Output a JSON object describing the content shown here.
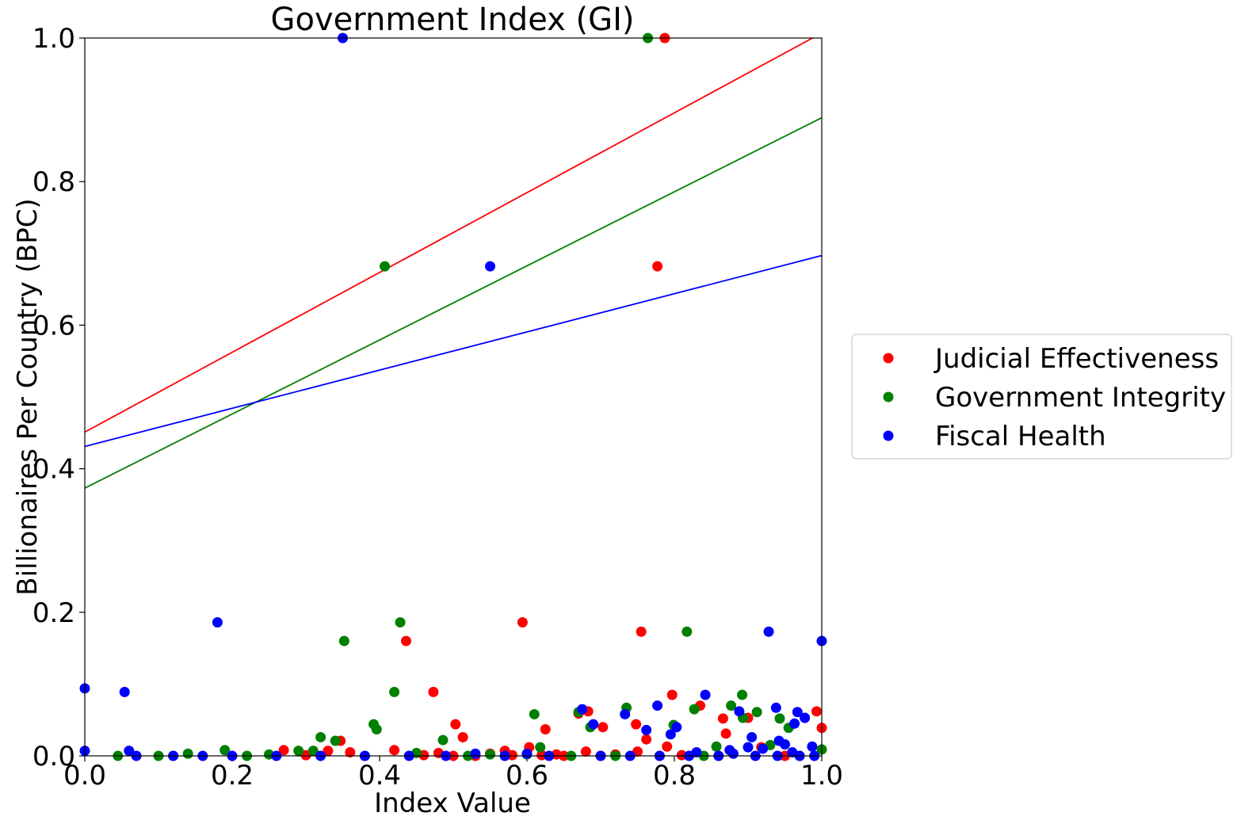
{
  "chart_data": {
    "type": "scatter",
    "title": "Government Index (GI)",
    "xlabel": "Index Value",
    "ylabel": "Billionaires Per Country (BPC)",
    "xlim": [
      0.0,
      1.0
    ],
    "ylim": [
      0.0,
      1.0
    ],
    "x_ticks": [
      "0.0",
      "0.2",
      "0.4",
      "0.6",
      "0.8",
      "1.0"
    ],
    "y_ticks": [
      "0.0",
      "0.2",
      "0.4",
      "0.6",
      "0.8",
      "1.0"
    ],
    "grid": false,
    "legend_placement": "outside-right",
    "series": [
      {
        "name": "Judicial Effectiveness",
        "color": "#ff0000",
        "points": [
          [
            0.787,
            1.0
          ],
          [
            0.777,
            0.682
          ],
          [
            0.594,
            0.186
          ],
          [
            0.755,
            0.173
          ],
          [
            0.436,
            0.16
          ],
          [
            0.473,
            0.089
          ],
          [
            0.797,
            0.085
          ],
          [
            0.835,
            0.07
          ],
          [
            0.683,
            0.062
          ],
          [
            0.67,
            0.059
          ],
          [
            0.993,
            0.062
          ],
          [
            0.866,
            0.052
          ],
          [
            0.9,
            0.053
          ],
          [
            0.503,
            0.044
          ],
          [
            0.748,
            0.044
          ],
          [
            0.703,
            0.04
          ],
          [
            1.0,
            0.039
          ],
          [
            0.625,
            0.037
          ],
          [
            0.513,
            0.026
          ],
          [
            0.762,
            0.023
          ],
          [
            0.87,
            0.031
          ],
          [
            0.347,
            0.021
          ],
          [
            0.79,
            0.013
          ],
          [
            0.603,
            0.012
          ],
          [
            0.918,
            0.012
          ],
          [
            0.27,
            0.008
          ],
          [
            0.42,
            0.008
          ],
          [
            0.33,
            0.007
          ],
          [
            0.57,
            0.007
          ],
          [
            0.68,
            0.006
          ],
          [
            0.75,
            0.006
          ],
          [
            0.36,
            0.005
          ],
          [
            0.48,
            0.004
          ],
          [
            0.55,
            0.003
          ],
          [
            0.64,
            0.002
          ],
          [
            0.72,
            0.002
          ],
          [
            0.46,
            0.001
          ],
          [
            0.58,
            0.001
          ],
          [
            0.3,
            0.001
          ],
          [
            0.62,
            0.001
          ],
          [
            0.81,
            0.001
          ],
          [
            0.5,
            0.0
          ],
          [
            0.53,
            0.0
          ],
          [
            0.65,
            0.0
          ],
          [
            0.7,
            0.0
          ],
          [
            0.78,
            0.0
          ],
          [
            0.86,
            0.0
          ],
          [
            0.95,
            0.0
          ]
        ],
        "trend": {
          "intercept": 0.451,
          "slope": 0.556
        }
      },
      {
        "name": "Government Integrity",
        "color": "#008000",
        "points": [
          [
            0.764,
            1.0
          ],
          [
            0.407,
            0.682
          ],
          [
            0.428,
            0.186
          ],
          [
            0.352,
            0.16
          ],
          [
            0.817,
            0.173
          ],
          [
            0.42,
            0.089
          ],
          [
            0.892,
            0.085
          ],
          [
            0.877,
            0.07
          ],
          [
            0.735,
            0.067
          ],
          [
            0.827,
            0.065
          ],
          [
            0.67,
            0.061
          ],
          [
            0.61,
            0.058
          ],
          [
            0.912,
            0.061
          ],
          [
            0.943,
            0.052
          ],
          [
            0.893,
            0.053
          ],
          [
            0.392,
            0.044
          ],
          [
            0.396,
            0.037
          ],
          [
            0.686,
            0.04
          ],
          [
            0.799,
            0.043
          ],
          [
            0.955,
            0.039
          ],
          [
            0.32,
            0.026
          ],
          [
            0.486,
            0.022
          ],
          [
            0.34,
            0.021
          ],
          [
            0.857,
            0.013
          ],
          [
            0.618,
            0.012
          ],
          [
            0.93,
            0.015
          ],
          [
            0.19,
            0.008
          ],
          [
            0.29,
            0.007
          ],
          [
            0.31,
            0.007
          ],
          [
            0.45,
            0.004
          ],
          [
            0.14,
            0.003
          ],
          [
            0.25,
            0.002
          ],
          [
            0.55,
            0.002
          ],
          [
            0.6,
            0.002
          ],
          [
            0.1,
            0.0
          ],
          [
            0.045,
            0.0
          ],
          [
            0.12,
            0.0
          ],
          [
            0.22,
            0.0
          ],
          [
            0.38,
            0.0
          ],
          [
            0.52,
            0.0
          ],
          [
            0.66,
            0.0
          ],
          [
            0.72,
            0.0
          ],
          [
            0.84,
            0.0
          ],
          [
            1.0,
            0.009
          ],
          [
            0.97,
            0.0
          ]
        ],
        "trend": {
          "intercept": 0.373,
          "slope": 0.516
        }
      },
      {
        "name": "Fiscal Health",
        "color": "#0000ff",
        "points": [
          [
            0.35,
            1.0
          ],
          [
            0.55,
            0.682
          ],
          [
            0.18,
            0.186
          ],
          [
            0.928,
            0.173
          ],
          [
            1.0,
            0.16
          ],
          [
            0.0,
            0.094
          ],
          [
            0.054,
            0.089
          ],
          [
            0.842,
            0.085
          ],
          [
            0.777,
            0.07
          ],
          [
            0.675,
            0.065
          ],
          [
            0.938,
            0.067
          ],
          [
            0.733,
            0.058
          ],
          [
            0.888,
            0.062
          ],
          [
            0.967,
            0.061
          ],
          [
            0.977,
            0.053
          ],
          [
            0.803,
            0.04
          ],
          [
            0.69,
            0.044
          ],
          [
            0.762,
            0.036
          ],
          [
            0.963,
            0.045
          ],
          [
            0.795,
            0.03
          ],
          [
            0.905,
            0.026
          ],
          [
            0.942,
            0.021
          ],
          [
            0.95,
            0.016
          ],
          [
            0.9,
            0.012
          ],
          [
            0.987,
            0.013
          ],
          [
            0.0,
            0.007
          ],
          [
            0.06,
            0.007
          ],
          [
            0.83,
            0.005
          ],
          [
            0.875,
            0.008
          ],
          [
            0.88,
            0.003
          ],
          [
            0.92,
            0.01
          ],
          [
            0.96,
            0.005
          ],
          [
            0.53,
            0.003
          ],
          [
            0.6,
            0.003
          ],
          [
            0.07,
            0.0
          ],
          [
            0.12,
            0.0
          ],
          [
            0.16,
            0.0
          ],
          [
            0.2,
            0.0
          ],
          [
            0.26,
            0.0
          ],
          [
            0.32,
            0.0
          ],
          [
            0.38,
            0.0
          ],
          [
            0.44,
            0.0
          ],
          [
            0.49,
            0.0
          ],
          [
            0.57,
            0.0
          ],
          [
            0.63,
            0.0
          ],
          [
            0.7,
            0.0
          ],
          [
            0.74,
            0.0
          ],
          [
            0.78,
            0.0
          ],
          [
            0.82,
            0.0
          ],
          [
            0.86,
            0.0
          ],
          [
            0.91,
            0.0
          ],
          [
            0.94,
            0.0
          ],
          [
            0.97,
            0.0
          ],
          [
            0.99,
            0.0
          ]
        ],
        "trend": {
          "intercept": 0.431,
          "slope": 0.266
        }
      }
    ]
  }
}
